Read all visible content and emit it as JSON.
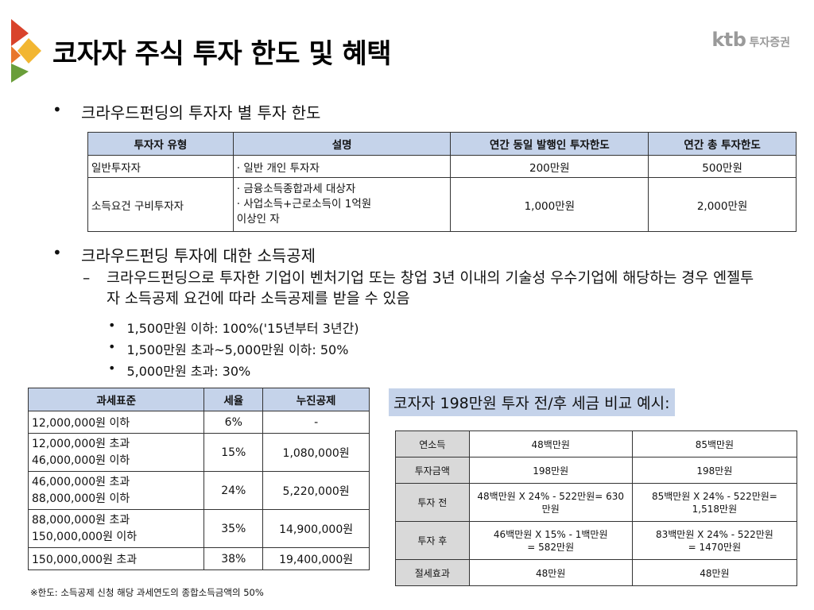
{
  "title": "코자자 주식 투자 한도 및 혜택",
  "brand": {
    "logo": "ktb",
    "name": "투자증권"
  },
  "section1": {
    "bullet": "•",
    "heading": "크라우드펀딩의 투자자 별 투자 한도",
    "table": {
      "headers": [
        "투자자 유형",
        "설명",
        "연간 동일 발행인 투자한도",
        "연간 총 투자한도"
      ],
      "rows": [
        {
          "type": "일반투자자",
          "desc": [
            "· 일반 개인 투자자"
          ],
          "same_issuer": "200만원",
          "total": "500만원"
        },
        {
          "type": "소득요건 구비투자자",
          "desc": [
            "· 금융소득종합과세 대상자",
            "· 사업소득+근로소득이 1억원",
            "이상인 자"
          ],
          "same_issuer": "1,000만원",
          "total": "2,000만원"
        }
      ]
    }
  },
  "section2": {
    "bullet": "•",
    "heading": "크라우드펀딩 투자에 대한 소득공제",
    "dash": "–",
    "dash_text": "크라우드펀딩으로 투자한 기업이 벤처기업 또는 창업 3년 이내의 기술성 우수기업에 해당하는 경우 엔젤투자 소득공제 요건에 따라 소득공제를 받을 수 있음",
    "sub_bullet_mark": "•",
    "sub_bullets": [
      "1,500만원 이하: 100%('15년부터 3년간)",
      "1,500만원 초과~5,000만원 이하: 50%",
      "5,000만원 초과: 30%"
    ]
  },
  "tax_table": {
    "headers": [
      "과세표준",
      "세율",
      "누진공제"
    ],
    "rows": [
      {
        "base": [
          "12,000,000원 이하"
        ],
        "rate": "6%",
        "deduction": "-"
      },
      {
        "base": [
          "12,000,000원 초과",
          "46,000,000원 이하"
        ],
        "rate": "15%",
        "deduction": "1,080,000원"
      },
      {
        "base": [
          "46,000,000원 초과",
          "88,000,000원 이하"
        ],
        "rate": "24%",
        "deduction": "5,220,000원"
      },
      {
        "base": [
          "88,000,000원 초과",
          "150,000,000원 이하"
        ],
        "rate": "35%",
        "deduction": "14,900,000원"
      },
      {
        "base": [
          "150,000,000원 초과"
        ],
        "rate": "38%",
        "deduction": "19,400,000원"
      }
    ]
  },
  "compare": {
    "title": "코자자 198만원 투자 전/후 세금 비교 예시:",
    "rows": [
      {
        "label": "연소득",
        "a": [
          "48백만원"
        ],
        "b": [
          "85백만원"
        ]
      },
      {
        "label": "투자금액",
        "a": [
          "198만원"
        ],
        "b": [
          "198만원"
        ]
      },
      {
        "label": "투자 전",
        "a": [
          "48백만원 X 24% - 522만원= 630",
          "만원"
        ],
        "b": [
          "85백만원 X 24% - 522만원=",
          "1,518만원"
        ]
      },
      {
        "label": "투자 후",
        "a": [
          "46백만원 X 15% - 1백만원",
          "= 582만원"
        ],
        "b": [
          "83백만원 X 24% - 522만원",
          "= 1470만원"
        ]
      },
      {
        "label": "절세효과",
        "a": [
          "48만원"
        ],
        "b": [
          "48만원"
        ]
      }
    ]
  },
  "footnote": "※한도: 소득공제 신청 해당 과세연도의 종합소득금액의 50%",
  "colors": {
    "header_fill": "#c5d3ea",
    "label_fill": "#d9d9d9",
    "brand_gray": "#9a9a9a"
  }
}
